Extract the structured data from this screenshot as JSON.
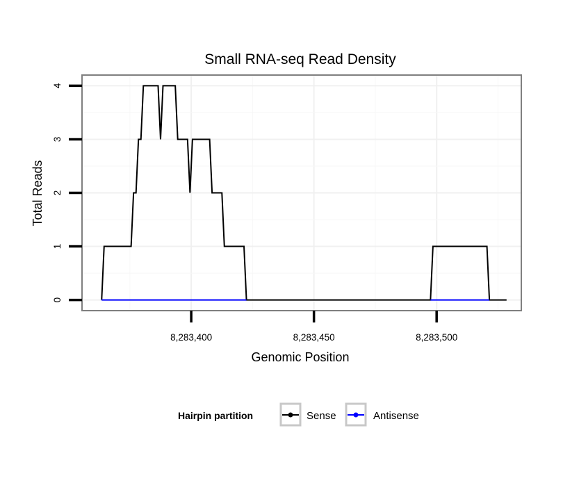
{
  "chart_data": {
    "type": "line",
    "title": "Small RNA-seq Read Density",
    "xlabel": "Genomic Position",
    "ylabel": "Total Reads",
    "xlim": [
      8283355.5,
      8283534.5
    ],
    "ylim": [
      -0.2,
      4.2
    ],
    "x_ticks": [
      8283400,
      8283450,
      8283500
    ],
    "x_tick_labels": [
      "8,283,400",
      "8,283,450",
      "8,283,500"
    ],
    "y_ticks": [
      0,
      1,
      2,
      3,
      4
    ],
    "y_tick_labels": [
      "0",
      "1",
      "2",
      "3",
      "4"
    ],
    "grid": true,
    "legend": {
      "title": "Hairpin partition",
      "position": "bottom",
      "entries": [
        "Sense",
        "Antisense"
      ]
    },
    "series": [
      {
        "name": "Sense",
        "color": "#000000",
        "points": [
          [
            8283363.5,
            0
          ],
          [
            8283364.5,
            1
          ],
          [
            8283375.5,
            1
          ],
          [
            8283376.5,
            2
          ],
          [
            8283377.5,
            2
          ],
          [
            8283378.5,
            3
          ],
          [
            8283379.5,
            3
          ],
          [
            8283380.5,
            4
          ],
          [
            8283386.5,
            4
          ],
          [
            8283387.5,
            3
          ],
          [
            8283388.5,
            4
          ],
          [
            8283393.5,
            4
          ],
          [
            8283394.5,
            3
          ],
          [
            8283398.5,
            3
          ],
          [
            8283399.5,
            2
          ],
          [
            8283400.5,
            3
          ],
          [
            8283407.5,
            3
          ],
          [
            8283408.5,
            2
          ],
          [
            8283412.5,
            2
          ],
          [
            8283413.5,
            1
          ],
          [
            8283421.5,
            1
          ],
          [
            8283422.5,
            0
          ],
          [
            8283497.5,
            0
          ],
          [
            8283498.5,
            1
          ],
          [
            8283520.5,
            1
          ],
          [
            8283521.5,
            0
          ],
          [
            8283528.5,
            0
          ]
        ]
      },
      {
        "name": "Antisense",
        "color": "#0000ff",
        "points": [
          [
            8283363.5,
            0
          ],
          [
            8283422.5,
            0
          ]
        ]
      },
      {
        "name": "Antisense",
        "color": "#0000ff",
        "points": [
          [
            8283497.5,
            0
          ],
          [
            8283521.5,
            0
          ]
        ]
      }
    ]
  }
}
